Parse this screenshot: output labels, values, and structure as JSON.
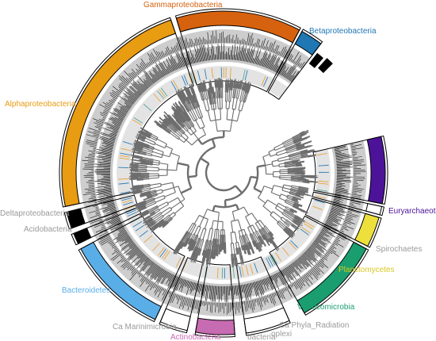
{
  "clades": [
    {
      "id": "gamma",
      "name": "Gammaproteobacteria",
      "color": "#d6620f",
      "a0": 343,
      "a1": 28
    },
    {
      "id": "beta",
      "name": "Betaproteobacteria",
      "color": "#1f77b4",
      "a0": 29,
      "a1": 37
    },
    {
      "id": "alpha",
      "name": "Alphaproteobacteria",
      "color": "#e89c12",
      "a0": 258,
      "a1": 341
    },
    {
      "id": "delta",
      "name": "Deltaproteobacteria",
      "color": "#000000",
      "a0": 250,
      "a1": 256
    },
    {
      "id": "acido",
      "name": "Acidobacteria",
      "color": "#000000",
      "a0": 244,
      "a1": 248
    },
    {
      "id": "bacteroidetes",
      "name": "Bacteroidetes",
      "color": "#5aaee8",
      "a0": 205,
      "a1": 242
    },
    {
      "id": "marinimicrobia",
      "name": "Ca Marinimicrobia",
      "color": "#ffffff",
      "a0": 193,
      "a1": 203
    },
    {
      "id": "actinobacteria",
      "name": "Actinobacteria",
      "color": "#c76bb2",
      "a0": 176,
      "a1": 190
    },
    {
      "id": "cpr",
      "name": "Ca Phyla_Radiation",
      "color": "#ffffff",
      "a0": 156,
      "a1": 172
    },
    {
      "id": "verrucomicrobia",
      "name": "Verrucomicrobia",
      "color": "#1a9e70",
      "a0": 118,
      "a1": 150
    },
    {
      "id": "planctomycetes",
      "name": "Planctomycetes",
      "color": "#ede03c",
      "a0": 106,
      "a1": 117
    },
    {
      "id": "spirochaetes",
      "name": "Spirochaetes",
      "color": "#ffffff",
      "a0": 102,
      "a1": 105
    },
    {
      "id": "euryarchaeota",
      "name": "Euryarchaeota",
      "color": "#4c1399",
      "a0": 77,
      "a1": 101
    }
  ],
  "labels": {
    "gamma": "Gammaproteobacteria",
    "beta": "Betaproteobacteria",
    "alpha": "Alphaproteobacteria",
    "delta": "Deltaproteobacteria",
    "acido": "Acidobacteria",
    "bacteroidetes": "Bacteroidetes",
    "marinimicrobia": "Ca Marinimicrobia",
    "actinobacteria": "Actinobacteria",
    "cpr": "Ca Phyla_Radiation",
    "verrucomicrobia": "Verrucomicrobia",
    "planctomycetes": "Planctomycetes",
    "spirochaetes": "Spirochaetes",
    "euryarchaeota": "Euryarchaeota",
    "bacteria_fragment": "bacteria",
    "fragment_2": "oplexi"
  },
  "colors": {
    "tree": "#6e6e6e",
    "ring_gray": "#c8c8c8",
    "ring_dark": "#2a2a2a",
    "inner_ring": "#e3e3e3",
    "tick_orange": "#e8a33a",
    "tick_blue": "#2e7db5",
    "tick_teal": "#5aa69a"
  }
}
